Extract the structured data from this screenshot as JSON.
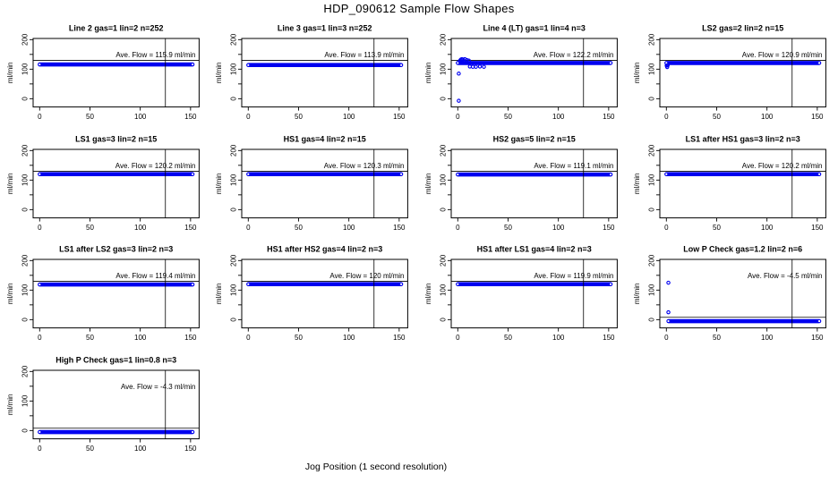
{
  "title": "HDP_090612  Sample Flow Shapes",
  "xlabel": "Jog Position (1 second resolution)",
  "colors": {
    "point_blue": "#0000f0",
    "axis_black": "#000000",
    "background": "#ffffff"
  },
  "chart_data": {
    "type": "scatter",
    "title": "HDP_090612  Sample Flow Shapes",
    "xlabel": "Jog Position (1 second resolution)",
    "ylabel": "ml/min",
    "grid": {
      "cols": 4,
      "rows": 4
    },
    "xlim": [
      -6.5,
      158.5
    ],
    "ylim": [
      -28,
      204
    ],
    "xticks": [
      0,
      50,
      100,
      150
    ],
    "yticks_all": [
      0,
      50,
      100,
      150,
      200
    ],
    "yticks_labeled": [
      0,
      100,
      200
    ],
    "vline_x": 125,
    "panels": [
      {
        "id": "line-2",
        "title": "Line 2 gas=1 lin=2 n=252",
        "gas": 1,
        "lin": 2,
        "n": 252,
        "ave_flow": 115.9,
        "annotation": "Ave. Flow =  115.9  ml/min",
        "hline": 130,
        "band": {
          "x0": 0,
          "x1": 152,
          "center": 116,
          "half": 7
        },
        "points": []
      },
      {
        "id": "line-3",
        "title": "Line 3 gas=1 lin=3 n=252",
        "gas": 1,
        "lin": 3,
        "n": 252,
        "ave_flow": 113.9,
        "annotation": "Ave. Flow =  113.9  ml/min",
        "hline": 130,
        "band": {
          "x0": 0,
          "x1": 152,
          "center": 114,
          "half": 7
        },
        "points": []
      },
      {
        "id": "line-4-lt",
        "title": "Line 4 (LT) gas=1 lin=4 n=3",
        "gas": 1,
        "lin": 4,
        "n": 3,
        "ave_flow": 122.2,
        "annotation": "Ave. Flow =  122.2  ml/min",
        "hline": 130,
        "band": {
          "x0": 0,
          "x1": 152,
          "center": 121,
          "half": 7
        },
        "points": [
          [
            1,
            85
          ],
          [
            1,
            -7
          ],
          [
            2,
            128
          ],
          [
            3,
            132
          ],
          [
            4,
            134
          ],
          [
            5,
            133
          ],
          [
            7,
            134
          ],
          [
            9,
            131
          ],
          [
            11,
            129
          ],
          [
            12,
            109
          ],
          [
            15,
            108
          ],
          [
            18,
            108
          ],
          [
            22,
            109
          ],
          [
            26,
            108
          ]
        ]
      },
      {
        "id": "ls2",
        "title": "LS2 gas=2 lin=2 n=15",
        "gas": 2,
        "lin": 2,
        "n": 15,
        "ave_flow": 120.9,
        "annotation": "Ave. Flow =  120.9  ml/min",
        "hline": 130,
        "band": {
          "x0": 0,
          "x1": 152,
          "center": 121,
          "half": 7
        },
        "points": [
          [
            0.3,
            112
          ],
          [
            0.8,
            107
          ],
          [
            1.3,
            113
          ]
        ]
      },
      {
        "id": "ls1",
        "title": "LS1 gas=3 lin=2 n=15",
        "gas": 3,
        "lin": 2,
        "n": 15,
        "ave_flow": 120.2,
        "annotation": "Ave. Flow =  120.2  ml/min",
        "hline": 130,
        "band": {
          "x0": 0,
          "x1": 152,
          "center": 120,
          "half": 7
        },
        "points": []
      },
      {
        "id": "hs1",
        "title": "HS1 gas=4 lin=2 n=15",
        "gas": 4,
        "lin": 2,
        "n": 15,
        "ave_flow": 120.3,
        "annotation": "Ave. Flow =  120.3  ml/min",
        "hline": 130,
        "band": {
          "x0": 0,
          "x1": 152,
          "center": 120,
          "half": 7
        },
        "points": []
      },
      {
        "id": "hs2",
        "title": "HS2 gas=5 lin=2 n=15",
        "gas": 5,
        "lin": 2,
        "n": 15,
        "ave_flow": 119.1,
        "annotation": "Ave. Flow =  119.1  ml/min",
        "hline": 130,
        "band": {
          "x0": 0,
          "x1": 152,
          "center": 119,
          "half": 7
        },
        "points": []
      },
      {
        "id": "ls1-after-hs1",
        "title": "LS1 after HS1 gas=3 lin=2 n=3",
        "gas": 3,
        "lin": 2,
        "n": 3,
        "ave_flow": 120.2,
        "annotation": "Ave. Flow =  120.2  ml/min",
        "hline": 130,
        "band": {
          "x0": 0,
          "x1": 152,
          "center": 120,
          "half": 7
        },
        "points": []
      },
      {
        "id": "ls1-after-ls2",
        "title": "LS1 after LS2 gas=3 lin=2 n=3",
        "gas": 3,
        "lin": 2,
        "n": 3,
        "ave_flow": 119.4,
        "annotation": "Ave. Flow =  119.4  ml/min",
        "hline": 130,
        "band": {
          "x0": 0,
          "x1": 152,
          "center": 119,
          "half": 7
        },
        "points": []
      },
      {
        "id": "hs1-after-hs2",
        "title": "HS1 after HS2 gas=4 lin=2 n=3",
        "gas": 4,
        "lin": 2,
        "n": 3,
        "ave_flow": 120,
        "annotation": "Ave. Flow =  120  ml/min",
        "hline": 130,
        "band": {
          "x0": 0,
          "x1": 152,
          "center": 120,
          "half": 7
        },
        "points": []
      },
      {
        "id": "hs1-after-ls1",
        "title": "HS1 after LS1 gas=4 lin=2 n=3",
        "gas": 4,
        "lin": 2,
        "n": 3,
        "ave_flow": 119.9,
        "annotation": "Ave. Flow =  119.9  ml/min",
        "hline": 130,
        "band": {
          "x0": 0,
          "x1": 152,
          "center": 120,
          "half": 7
        },
        "points": []
      },
      {
        "id": "low-p-check",
        "title": "Low P Check gas=1.2 lin=2 n=6",
        "gas": 1.2,
        "lin": 2,
        "n": 6,
        "ave_flow": -4.5,
        "annotation": "Ave. Flow =  -4.5  ml/min",
        "hline": 8,
        "band": {
          "x0": 2,
          "x1": 152,
          "center": -5,
          "half": 7
        },
        "points": [
          [
            2,
            125
          ],
          [
            2,
            25
          ]
        ]
      },
      {
        "id": "high-p-check",
        "title": "High P Check gas=1 lin=0.8 n=3",
        "gas": 1,
        "lin": 0.8,
        "n": 3,
        "ave_flow": -4.3,
        "annotation": "Ave. Flow =  -4.3  ml/min",
        "hline": 8,
        "band": {
          "x0": 0,
          "x1": 152,
          "center": -5,
          "half": 7
        },
        "points": []
      }
    ]
  }
}
